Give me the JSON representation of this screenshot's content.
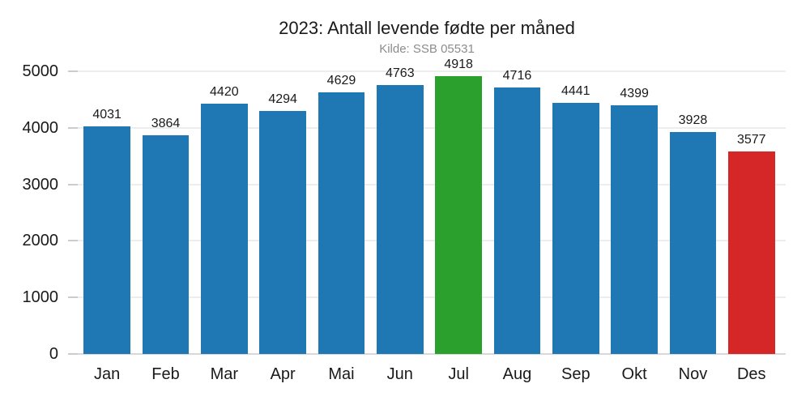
{
  "chart_data": {
    "type": "bar",
    "title": "2023: Antall levende fødte per måned",
    "subtitle": "Kilde: SSB 05531",
    "categories": [
      "Jan",
      "Feb",
      "Mar",
      "Apr",
      "Mai",
      "Jun",
      "Jul",
      "Aug",
      "Sep",
      "Okt",
      "Nov",
      "Des"
    ],
    "values": [
      4031,
      3864,
      4420,
      4294,
      4629,
      4763,
      4918,
      4716,
      4441,
      4399,
      3928,
      3577
    ],
    "bar_value_labels": [
      "4031",
      "3864",
      "4420",
      "4294",
      "4629",
      "4763",
      "4918",
      "4716",
      "4441",
      "4399",
      "3928",
      "3577"
    ],
    "bar_colors": [
      "#1f77b4",
      "#1f77b4",
      "#1f77b4",
      "#1f77b4",
      "#1f77b4",
      "#1f77b4",
      "#2ca02c",
      "#1f77b4",
      "#1f77b4",
      "#1f77b4",
      "#1f77b4",
      "#d62728"
    ],
    "highlight": {
      "max_month": "Jul",
      "max_value": 4918,
      "min_month": "Des",
      "min_value": 3577
    },
    "xlabel": "",
    "ylabel": "",
    "ylim": [
      0,
      5000
    ],
    "yticks": [
      0,
      1000,
      2000,
      3000,
      4000,
      5000
    ],
    "grid": "horizontal-only",
    "legend": "none",
    "colors": {
      "default_bar": "#1f77b4",
      "max_bar": "#2ca02c",
      "min_bar": "#d62728",
      "grid_line": "#ededed",
      "axis_line": "#d8d8d8",
      "tick_mark": "#cccccc",
      "title_text": "#1a1a1a",
      "subtitle_text": "#8c8c8c",
      "tick_text": "#1a1a1a",
      "value_label_text": "#1a1a1a",
      "background": "#ffffff"
    }
  }
}
